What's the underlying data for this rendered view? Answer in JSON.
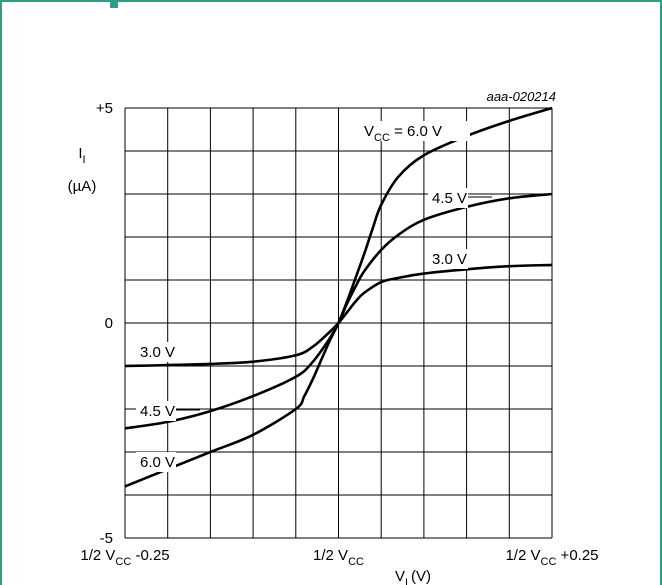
{
  "colors": {
    "frame": "#2e9e86",
    "grid": "#000000",
    "curve": "#000000",
    "background": "#ffffff"
  },
  "chart_data": {
    "type": "line",
    "figure_code": "aaa-020214",
    "ylabel": {
      "symbol": "I",
      "subscript": "I",
      "unit": "(µA)"
    },
    "xlabel": {
      "symbol": "V",
      "subscript": "I",
      "unit": "(V)"
    },
    "y_ticks": [
      {
        "value": 5,
        "label": "+5"
      },
      {
        "value": 0,
        "label": "0"
      },
      {
        "value": -5,
        "label": "-5"
      }
    ],
    "x_ticks": [
      {
        "value": -0.25,
        "prefix": "1/2 V",
        "sub": "CC",
        "suffix": " -0.25"
      },
      {
        "value": 0,
        "prefix": "1/2 V",
        "sub": "CC",
        "suffix": ""
      },
      {
        "value": 0.25,
        "prefix": "1/2 V",
        "sub": "CC",
        "suffix": " +0.25"
      }
    ],
    "xlim": [
      -0.25,
      0.25
    ],
    "ylim": [
      -5,
      5
    ],
    "grid": true,
    "series": [
      {
        "name": "V_CC = 6.0 V",
        "x": [
          -0.25,
          -0.2,
          -0.15,
          -0.1,
          -0.05,
          -0.04,
          -0.03,
          -0.02,
          -0.01,
          0,
          0.01,
          0.02,
          0.03,
          0.04,
          0.05,
          0.07,
          0.1,
          0.15,
          0.2,
          0.25
        ],
        "y": [
          -3.8,
          -3.4,
          -3.0,
          -2.6,
          -2.0,
          -1.7,
          -1.3,
          -0.85,
          -0.4,
          0,
          0.5,
          1.05,
          1.6,
          2.2,
          2.75,
          3.4,
          3.9,
          4.35,
          4.7,
          5.0
        ]
      },
      {
        "name": "4.5 V",
        "x": [
          -0.25,
          -0.2,
          -0.15,
          -0.1,
          -0.05,
          -0.03,
          -0.01,
          0,
          0.01,
          0.02,
          0.03,
          0.05,
          0.07,
          0.1,
          0.15,
          0.2,
          0.25
        ],
        "y": [
          -2.45,
          -2.3,
          -2.05,
          -1.7,
          -1.25,
          -0.9,
          -0.35,
          0,
          0.45,
          0.85,
          1.2,
          1.7,
          2.05,
          2.4,
          2.7,
          2.9,
          3.0
        ]
      },
      {
        "name": "3.0 V",
        "x": [
          -0.25,
          -0.2,
          -0.15,
          -0.1,
          -0.05,
          -0.03,
          -0.01,
          0,
          0.01,
          0.02,
          0.03,
          0.05,
          0.07,
          0.1,
          0.15,
          0.2,
          0.25
        ],
        "y": [
          -1.0,
          -0.98,
          -0.95,
          -0.9,
          -0.75,
          -0.55,
          -0.2,
          0,
          0.25,
          0.5,
          0.7,
          0.95,
          1.05,
          1.15,
          1.25,
          1.32,
          1.35
        ]
      }
    ],
    "curve_labels": [
      {
        "prefix": "V",
        "sub": "CC",
        "suffix": " = 6.0 V",
        "series": 0
      },
      {
        "text": "4.5 V",
        "series": 1
      },
      {
        "text": "3.0 V",
        "series": 2
      },
      {
        "text": "3.0 V",
        "series": 2
      },
      {
        "text": "4.5 V",
        "series": 1
      },
      {
        "text": "6.0 V",
        "series": 0
      }
    ]
  }
}
